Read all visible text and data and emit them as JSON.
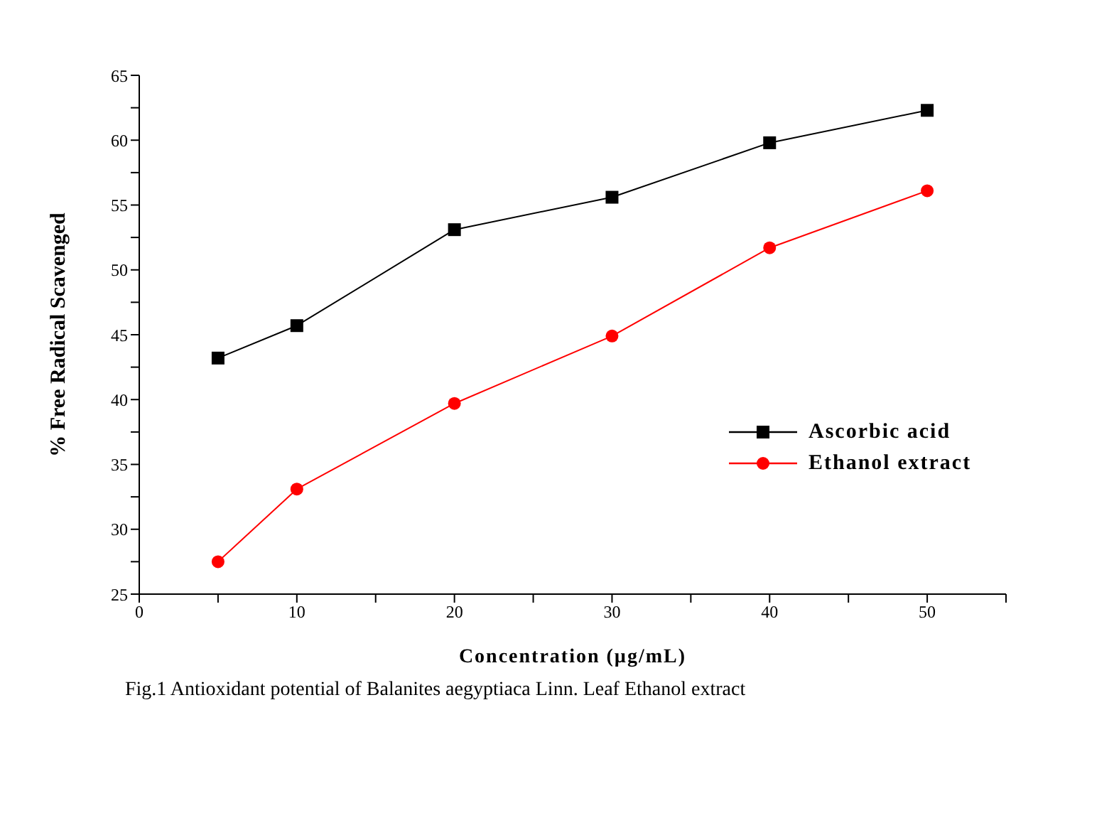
{
  "chart_data": {
    "type": "line",
    "xlabel": "Concentration (µg/mL)",
    "ylabel": "% Free Radical Scavenged",
    "annotations": [
      "Fig.1 Antioxidant potential of Balanites aegyptiaca Linn. Leaf Ethanol extract"
    ],
    "x": [
      5,
      10,
      20,
      30,
      40,
      50
    ],
    "series": [
      {
        "name": "Ascorbic acid",
        "color": "#000000",
        "marker": "square",
        "values": [
          43.2,
          45.7,
          53.1,
          55.6,
          59.8,
          62.3
        ]
      },
      {
        "name": "Ethanol extract",
        "color": "#ff0000",
        "marker": "circle",
        "values": [
          27.5,
          33.1,
          39.7,
          44.9,
          51.7,
          56.1
        ]
      }
    ],
    "xlim": [
      0,
      55
    ],
    "xticks": [
      0,
      {
        "value": 5,
        "label": null
      },
      10,
      {
        "value": 15,
        "label": null
      },
      20,
      {
        "value": 25,
        "label": null
      },
      30,
      {
        "value": 35,
        "label": null
      },
      40,
      {
        "value": 45,
        "label": null
      },
      50,
      {
        "value": 55,
        "label": null
      }
    ],
    "ylim": [
      25,
      65
    ],
    "yticks": [
      25,
      {
        "value": 27.5,
        "label": null
      },
      30,
      {
        "value": 32.5,
        "label": null
      },
      35,
      {
        "value": 37.5,
        "label": null
      },
      40,
      {
        "value": 42.5,
        "label": null
      },
      45,
      {
        "value": 47.5,
        "label": null
      },
      50,
      {
        "value": 52.5,
        "label": null
      },
      55,
      {
        "value": 57.5,
        "label": null
      },
      60,
      {
        "value": 62.5,
        "label": null
      },
      65
    ],
    "grid": false,
    "legend": "right",
    "line_style": "solid"
  }
}
